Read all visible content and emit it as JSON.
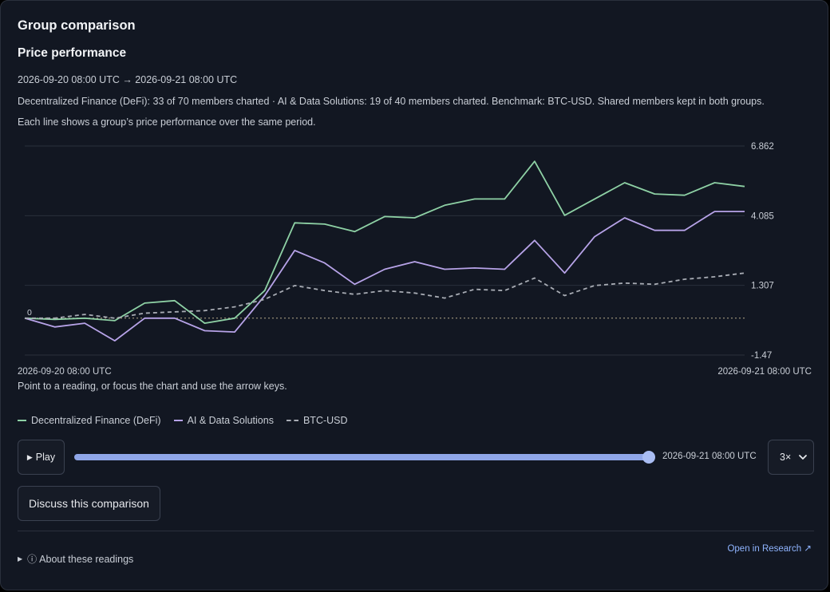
{
  "header": {
    "title": "Group comparison",
    "subtitle": "Price performance",
    "range": "2026-09-20 08:00 UTC → 2026-09-21 08:00 UTC",
    "description": "Decentralized Finance (DeFi): 33 of 70 members charted · AI & Data Solutions: 19 of 40 members charted. Benchmark: BTC-USD. Shared members kept in both groups.",
    "note": "Each line shows a group’s price performance over the same period."
  },
  "chart_data": {
    "type": "line",
    "title": "",
    "xlabel": "",
    "ylabel": "",
    "ylim": [
      -1.47,
      6.862
    ],
    "yticks": [
      "6.862",
      "4.085",
      "1.307",
      "-1.47"
    ],
    "zero_label": "0",
    "x_start_label": "2026-09-20 08:00 UTC",
    "x_end_label": "2026-09-21 08:00 UTC",
    "grid": true,
    "legend": "bottom",
    "series": [
      {
        "name": "Decentralized Finance (DeFi)",
        "color": "#8ed1a5",
        "dashed": false,
        "values": [
          0,
          -0.05,
          0,
          -0.1,
          0.6,
          0.7,
          -0.2,
          0,
          1.1,
          3.8,
          3.75,
          3.45,
          4.05,
          4.0,
          4.5,
          4.75,
          4.75,
          6.25,
          4.1,
          4.75,
          5.4,
          4.95,
          4.9,
          5.4,
          5.25
        ]
      },
      {
        "name": "AI & Data Solutions",
        "color": "#b7a3e8",
        "dashed": false,
        "values": [
          0,
          -0.35,
          -0.2,
          -0.9,
          0,
          0,
          -0.5,
          -0.55,
          0.9,
          2.7,
          2.2,
          1.35,
          1.95,
          2.25,
          1.95,
          2.0,
          1.95,
          3.1,
          1.8,
          3.25,
          4.0,
          3.5,
          3.5,
          4.25,
          4.25
        ]
      },
      {
        "name": "BTC-USD",
        "color": "#a8acb4",
        "dashed": true,
        "values": [
          0,
          0,
          0.15,
          0,
          0.2,
          0.25,
          0.3,
          0.45,
          0.75,
          1.3,
          1.1,
          0.95,
          1.1,
          1.0,
          0.8,
          1.15,
          1.1,
          1.6,
          0.9,
          1.3,
          1.4,
          1.35,
          1.55,
          1.65,
          1.8
        ]
      }
    ]
  },
  "hint": "Point to a reading, or focus the chart and use the arrow keys.",
  "controls": {
    "play_glyph": "▶",
    "play_label": "Play",
    "slider_progress": 1.0,
    "slider_time": "2026-09-21 08:00 UTC",
    "speed": "3×",
    "discuss_label": "Discuss this comparison"
  },
  "footer": {
    "about_glyph": "▶",
    "info_glyph": "ⓘ",
    "about_label": "About these readings",
    "research_label": "Open in Research ↗"
  },
  "icons": [
    "play-icon",
    "chevron-down-icon",
    "disclosure-triangle-icon",
    "info-icon",
    "external-link-icon"
  ]
}
